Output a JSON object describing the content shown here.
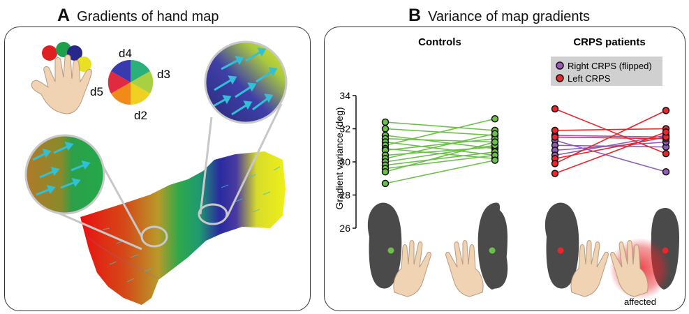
{
  "panel_a": {
    "letter": "A",
    "title": "Gradients of hand map",
    "wheel_labels": {
      "d4": "d4",
      "d3": "d3",
      "d5": "d5",
      "d2": "d2"
    }
  },
  "panel_b": {
    "letter": "B",
    "title": "Variance of map gradients",
    "group_controls": "Controls",
    "group_patients": "CRPS patients",
    "legend": [
      {
        "label": "Right CRPS (flipped)",
        "color": "#9b59b6"
      },
      {
        "label": "Left CRPS",
        "color": "#e8262b"
      }
    ],
    "affected_label": "affected"
  },
  "colors": {
    "controls": "#6cc04a",
    "right_crps": "#8e5bb5",
    "left_crps": "#e8262b"
  },
  "chart_data": {
    "type": "line",
    "ylabel": "Gradient variance (deg)",
    "ylim": [
      26,
      34
    ],
    "yticks": [
      26,
      28,
      30,
      32,
      34
    ],
    "groups": [
      {
        "name": "Controls",
        "pairs": [
          [
            32.4,
            31.9
          ],
          [
            32.0,
            31.6
          ],
          [
            31.6,
            30.8
          ],
          [
            31.4,
            31.2
          ],
          [
            31.2,
            30.4
          ],
          [
            31.0,
            32.6
          ],
          [
            30.8,
            30.2
          ],
          [
            30.7,
            31.4
          ],
          [
            30.4,
            30.9
          ],
          [
            30.2,
            31.7
          ],
          [
            30.0,
            31.0
          ],
          [
            29.8,
            30.6
          ],
          [
            29.6,
            30.4
          ],
          [
            29.4,
            31.2
          ],
          [
            28.7,
            30.1
          ]
        ]
      },
      {
        "name": "Right CRPS (flipped)",
        "pairs": [
          [
            31.6,
            31.5
          ],
          [
            31.3,
            29.4
          ],
          [
            31.0,
            30.9
          ],
          [
            30.7,
            31.2
          ],
          [
            30.4,
            31.6
          ]
        ]
      },
      {
        "name": "Left CRPS",
        "pairs": [
          [
            33.2,
            30.5
          ],
          [
            31.9,
            32.0
          ],
          [
            31.5,
            31.4
          ],
          [
            30.2,
            31.5
          ],
          [
            29.9,
            33.1
          ],
          [
            29.3,
            31.8
          ]
        ]
      }
    ]
  }
}
